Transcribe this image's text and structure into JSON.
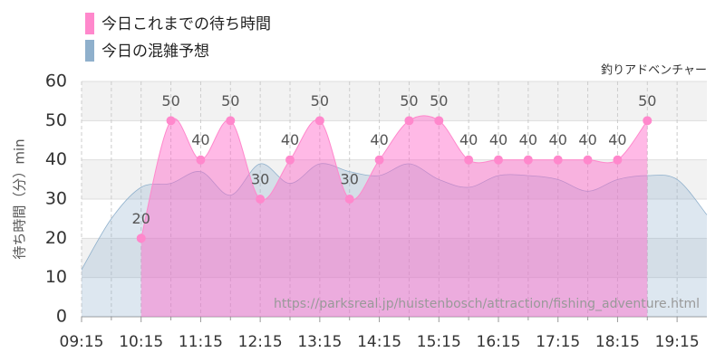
{
  "chart_data": {
    "type": "line",
    "subtitle": "釣りアドベンチャー",
    "ylabel": "待ち時間（分）min",
    "annotation": "https://parksreal.jp/huistenbosch/attraction/fishing_adventure.html",
    "xlim": [
      "09:15",
      "19:45"
    ],
    "xticks": [
      "09:15",
      "10:15",
      "11:15",
      "12:15",
      "13:15",
      "14:15",
      "15:15",
      "16:15",
      "17:15",
      "18:15",
      "19:15"
    ],
    "ylim": [
      0,
      60
    ],
    "yticks": [
      0,
      10,
      20,
      30,
      40,
      50,
      60
    ],
    "grid": true,
    "series": [
      {
        "name": "今日これまでの待ち時間",
        "color": "#ff88cc",
        "x": [
          "10:15",
          "10:45",
          "11:15",
          "11:45",
          "12:15",
          "12:45",
          "13:15",
          "13:45",
          "14:15",
          "14:45",
          "15:15",
          "15:45",
          "16:15",
          "16:45",
          "17:15",
          "17:45",
          "18:15",
          "18:45"
        ],
        "values": [
          20,
          50,
          40,
          50,
          30,
          40,
          50,
          30,
          40,
          50,
          50,
          40,
          40,
          40,
          40,
          40,
          40,
          50
        ]
      },
      {
        "name": "今日の混雑予想",
        "color": "#8fb0cc",
        "x": [
          "09:15",
          "09:45",
          "10:15",
          "10:45",
          "11:15",
          "11:45",
          "12:15",
          "12:45",
          "13:15",
          "13:45",
          "14:15",
          "14:45",
          "15:15",
          "15:45",
          "16:15",
          "16:45",
          "17:15",
          "17:45",
          "18:15",
          "18:45",
          "19:15",
          "19:45"
        ],
        "values": [
          12,
          25,
          33,
          34,
          37,
          31,
          39,
          34,
          39,
          37,
          36,
          39,
          35,
          33,
          36,
          36,
          35,
          32,
          35,
          36,
          35,
          26
        ]
      }
    ]
  }
}
